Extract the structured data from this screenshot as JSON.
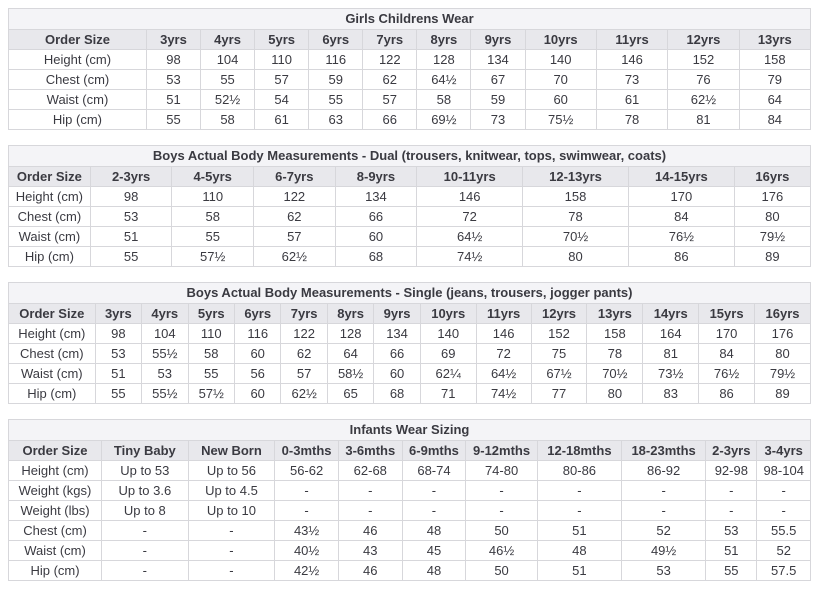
{
  "colors": {
    "title_row_bg": "#f4f4f7",
    "header_row_bg": "#e8e8ec",
    "border": "#d7d7db",
    "text": "#3a3a41",
    "body_bg": "#ffffff"
  },
  "tables": [
    {
      "title": "Girls Childrens Wear",
      "columns": [
        "Order Size",
        "3yrs",
        "4yrs",
        "5yrs",
        "6yrs",
        "7yrs",
        "8yrs",
        "9yrs",
        "10yrs",
        "11yrs",
        "12yrs",
        "13yrs"
      ],
      "rows": [
        {
          "label": "Height (cm)",
          "values": [
            "98",
            "104",
            "110",
            "116",
            "122",
            "128",
            "134",
            "140",
            "146",
            "152",
            "158"
          ]
        },
        {
          "label": "Chest (cm)",
          "values": [
            "53",
            "55",
            "57",
            "59",
            "62",
            "64½",
            "67",
            "70",
            "73",
            "76",
            "79"
          ]
        },
        {
          "label": "Waist (cm)",
          "values": [
            "51",
            "52½",
            "54",
            "55",
            "57",
            "58",
            "59",
            "60",
            "61",
            "62½",
            "64"
          ]
        },
        {
          "label": "Hip (cm)",
          "values": [
            "55",
            "58",
            "61",
            "63",
            "66",
            "69½",
            "73",
            "75½",
            "78",
            "81",
            "84"
          ]
        }
      ]
    },
    {
      "title": "Boys Actual Body Measurements - Dual (trousers, knitwear, tops, swimwear, coats)",
      "columns": [
        "Order Size",
        "2-3yrs",
        "4-5yrs",
        "6-7yrs",
        "8-9yrs",
        "10-11yrs",
        "12-13yrs",
        "14-15yrs",
        "16yrs"
      ],
      "rows": [
        {
          "label": "Height (cm)",
          "values": [
            "98",
            "110",
            "122",
            "134",
            "146",
            "158",
            "170",
            "176"
          ]
        },
        {
          "label": "Chest (cm)",
          "values": [
            "53",
            "58",
            "62",
            "66",
            "72",
            "78",
            "84",
            "80"
          ]
        },
        {
          "label": "Waist (cm)",
          "values": [
            "51",
            "55",
            "57",
            "60",
            "64½",
            "70½",
            "76½",
            "79½"
          ]
        },
        {
          "label": "Hip (cm)",
          "values": [
            "55",
            "57½",
            "62½",
            "68",
            "74½",
            "80",
            "86",
            "89"
          ]
        }
      ]
    },
    {
      "title": "Boys Actual Body Measurements - Single (jeans, trousers, jogger pants)",
      "columns": [
        "Order Size",
        "3yrs",
        "4yrs",
        "5yrs",
        "6yrs",
        "7yrs",
        "8yrs",
        "9yrs",
        "10yrs",
        "11yrs",
        "12yrs",
        "13yrs",
        "14yrs",
        "15yrs",
        "16yrs"
      ],
      "rows": [
        {
          "label": "Height (cm)",
          "values": [
            "98",
            "104",
            "110",
            "116",
            "122",
            "128",
            "134",
            "140",
            "146",
            "152",
            "158",
            "164",
            "170",
            "176"
          ]
        },
        {
          "label": "Chest (cm)",
          "values": [
            "53",
            "55½",
            "58",
            "60",
            "62",
            "64",
            "66",
            "69",
            "72",
            "75",
            "78",
            "81",
            "84",
            "80"
          ]
        },
        {
          "label": "Waist (cm)",
          "values": [
            "51",
            "53",
            "55",
            "56",
            "57",
            "58½",
            "60",
            "62¼",
            "64½",
            "67½",
            "70½",
            "73½",
            "76½",
            "79½"
          ]
        },
        {
          "label": "Hip (cm)",
          "values": [
            "55",
            "55½",
            "57½",
            "60",
            "62½",
            "65",
            "68",
            "71",
            "74½",
            "77",
            "80",
            "83",
            "86",
            "89"
          ]
        }
      ]
    },
    {
      "title": "Infants Wear Sizing",
      "columns": [
        "Order Size",
        "Tiny Baby",
        "New Born",
        "0-3mths",
        "3-6mths",
        "6-9mths",
        "9-12mths",
        "12-18mths",
        "18-23mths",
        "2-3yrs",
        "3-4yrs"
      ],
      "rows": [
        {
          "label": "Height (cm)",
          "values": [
            "Up to 53",
            "Up to 56",
            "56-62",
            "62-68",
            "68-74",
            "74-80",
            "80-86",
            "86-92",
            "92-98",
            "98-104"
          ]
        },
        {
          "label": "Weight (kgs)",
          "values": [
            "Up to 3.6",
            "Up to 4.5",
            "-",
            "-",
            "-",
            "-",
            "-",
            "-",
            "-",
            "-"
          ]
        },
        {
          "label": "Weight (lbs)",
          "values": [
            "Up to 8",
            "Up to 10",
            "-",
            "-",
            "-",
            "-",
            "-",
            "-",
            "-",
            "-"
          ]
        },
        {
          "label": "Chest (cm)",
          "values": [
            "-",
            "-",
            "43½",
            "46",
            "48",
            "50",
            "51",
            "52",
            "53",
            "55.5"
          ]
        },
        {
          "label": "Waist (cm)",
          "values": [
            "-",
            "-",
            "40½",
            "43",
            "45",
            "46½",
            "48",
            "49½",
            "51",
            "52"
          ]
        },
        {
          "label": "Hip (cm)",
          "values": [
            "-",
            "-",
            "42½",
            "46",
            "48",
            "50",
            "51",
            "53",
            "55",
            "57.5"
          ]
        }
      ]
    }
  ]
}
